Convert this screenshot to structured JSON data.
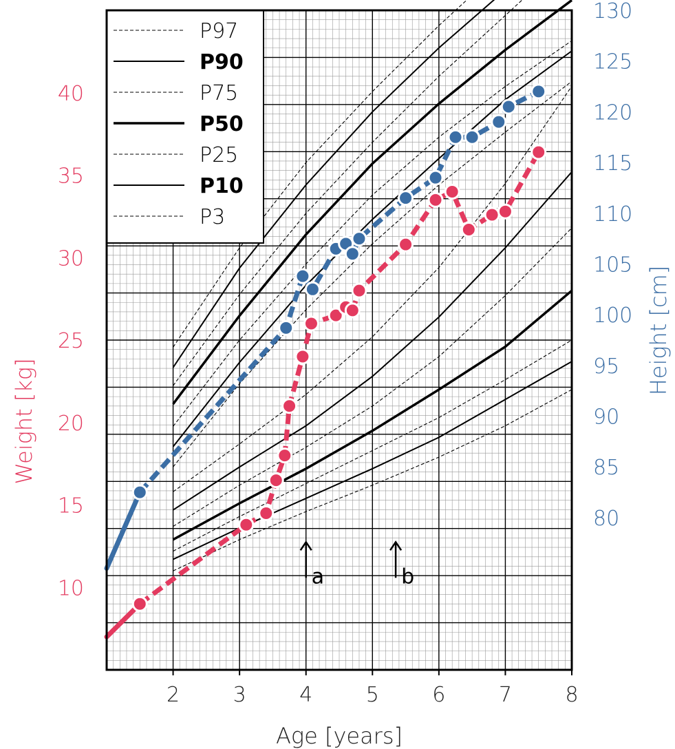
{
  "chart_data": {
    "type": "line",
    "xlabel": "Age [years]",
    "ylabel_left": "Weight [kg]",
    "ylabel_right": "Height [cm]",
    "xlim": [
      1,
      8
    ],
    "ylim_weight": [
      5,
      45
    ],
    "ylim_height": [
      65,
      130
    ],
    "x_ticks": [
      "2",
      "3",
      "4",
      "5",
      "6",
      "7",
      "8"
    ],
    "weight_ticks": [
      "10",
      "15",
      "20",
      "25",
      "30",
      "35",
      "40"
    ],
    "height_ticks": [
      "80",
      "85",
      "90",
      "95",
      "100",
      "105",
      "110",
      "115",
      "120",
      "125",
      "130"
    ],
    "grid": true,
    "legend_position": "top-left",
    "colors": {
      "weight": "#e33a5f",
      "height": "#3b6ea5",
      "percentile": "#000000",
      "grid": "#9a9a9a"
    },
    "legend": [
      {
        "label": "P97",
        "style": "dashed"
      },
      {
        "label": "P90",
        "style": "solid"
      },
      {
        "label": "P75",
        "style": "dashed"
      },
      {
        "label": "P50",
        "style": "bold"
      },
      {
        "label": "P25",
        "style": "dashed"
      },
      {
        "label": "P10",
        "style": "solid"
      },
      {
        "label": "P3",
        "style": "dashed"
      }
    ],
    "annotations": [
      {
        "label": "a",
        "x": 4.0,
        "weight": 11.5
      },
      {
        "label": "b",
        "x": 5.35,
        "weight": 11.5
      }
    ],
    "height_percentiles": {
      "x": [
        2,
        3,
        4,
        5,
        6,
        7,
        8
      ],
      "P97": [
        96.8,
        106.6,
        115.0,
        122.0,
        128.5,
        134.5,
        140.0
      ],
      "P90": [
        94.8,
        104.6,
        112.8,
        120.0,
        126.3,
        132.0,
        138.4
      ],
      "P75": [
        93.0,
        102.0,
        110.0,
        117.0,
        123.5,
        129.5,
        135.5
      ],
      "P50": [
        91.2,
        99.9,
        107.9,
        114.9,
        120.8,
        126.1,
        131.0
      ],
      "P25": [
        89.0,
        97.5,
        105.0,
        111.8,
        117.5,
        122.5,
        127.0
      ],
      "P10": [
        87.0,
        95.3,
        102.9,
        109.4,
        115.4,
        121.2,
        126.0
      ],
      "P3": [
        85.0,
        93.2,
        100.5,
        107.0,
        112.8,
        118.0,
        123.0
      ]
    },
    "weight_percentiles": {
      "x": [
        2,
        3,
        4,
        5,
        6,
        7,
        8
      ],
      "P97": [
        15.8,
        18.7,
        21.7,
        25.2,
        29.4,
        34.5,
        40.4
      ],
      "P90": [
        14.7,
        17.3,
        19.8,
        22.8,
        26.4,
        30.6,
        35.2
      ],
      "P75": [
        13.7,
        16.2,
        18.5,
        21.0,
        24.0,
        27.7,
        31.8
      ],
      "P50": [
        12.9,
        15.1,
        17.2,
        19.5,
        22.0,
        24.6,
        28.0
      ],
      "P25": [
        12.2,
        14.3,
        16.3,
        18.3,
        20.3,
        22.6,
        25.0
      ],
      "P10": [
        11.7,
        13.6,
        15.4,
        17.2,
        19.1,
        21.4,
        23.7
      ],
      "P3": [
        11.0,
        12.9,
        14.6,
        16.2,
        17.9,
        19.8,
        22.0
      ]
    },
    "series": [
      {
        "name": "Height",
        "axis": "right",
        "x": [
          1.0,
          1.5,
          3.7,
          3.95,
          4.1,
          4.45,
          4.6,
          4.7,
          4.8,
          5.5,
          5.95,
          6.25,
          6.5,
          6.9,
          7.05,
          7.5
        ],
        "values": [
          75.0,
          82.5,
          98.7,
          103.8,
          102.5,
          106.5,
          107.0,
          106.0,
          107.5,
          111.5,
          113.5,
          117.5,
          117.5,
          119.0,
          120.5,
          122.0
        ]
      },
      {
        "name": "Weight",
        "axis": "left",
        "x": [
          1.0,
          1.5,
          3.1,
          3.4,
          3.55,
          3.68,
          3.75,
          3.95,
          4.08,
          4.45,
          4.6,
          4.7,
          4.8,
          5.5,
          5.95,
          6.2,
          6.45,
          6.8,
          7.0,
          7.5
        ],
        "values": [
          7.0,
          9.0,
          13.8,
          14.5,
          16.5,
          18.0,
          21.0,
          24.0,
          26.0,
          26.5,
          27.0,
          26.8,
          28.0,
          30.8,
          33.5,
          34.0,
          31.7,
          32.6,
          32.8,
          36.4
        ]
      }
    ]
  }
}
